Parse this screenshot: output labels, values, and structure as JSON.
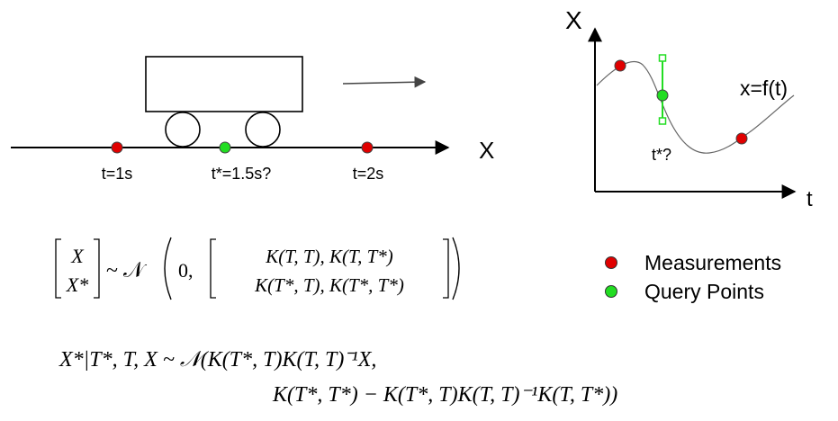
{
  "left_diagram": {
    "axis_label": "X",
    "labels": {
      "t1": "t=1s",
      "tstar": "t*=1.5s?",
      "t2": "t=2s"
    }
  },
  "right_plot": {
    "y_axis_label": "X",
    "x_axis_label": "t",
    "curve_label": "x=f(t)",
    "query_label": "t*?"
  },
  "legend": {
    "items": [
      {
        "label": "Measurements",
        "color": "#e00000"
      },
      {
        "label": "Query Points",
        "color": "#22dd22"
      }
    ]
  },
  "equations": {
    "joint_lhs_top": "X",
    "joint_lhs_bottom": "X*",
    "joint_dist": "~ 𝒩",
    "joint_mean": "0,",
    "cov_row1": "K(T, T), K(T, T*)",
    "cov_row2": "K(T*, T), K(T*, T*)",
    "cond_line1": "X*|T*, T, X ~ 𝒩(K(T*, T)K(T, T)⁻¹X,",
    "cond_line2": "K(T*, T*) − K(T*, T)K(T, T)⁻¹K(T, T*))"
  },
  "colors": {
    "measurement": "#e00000",
    "query": "#22dd22",
    "bracket": "#22dd22"
  }
}
